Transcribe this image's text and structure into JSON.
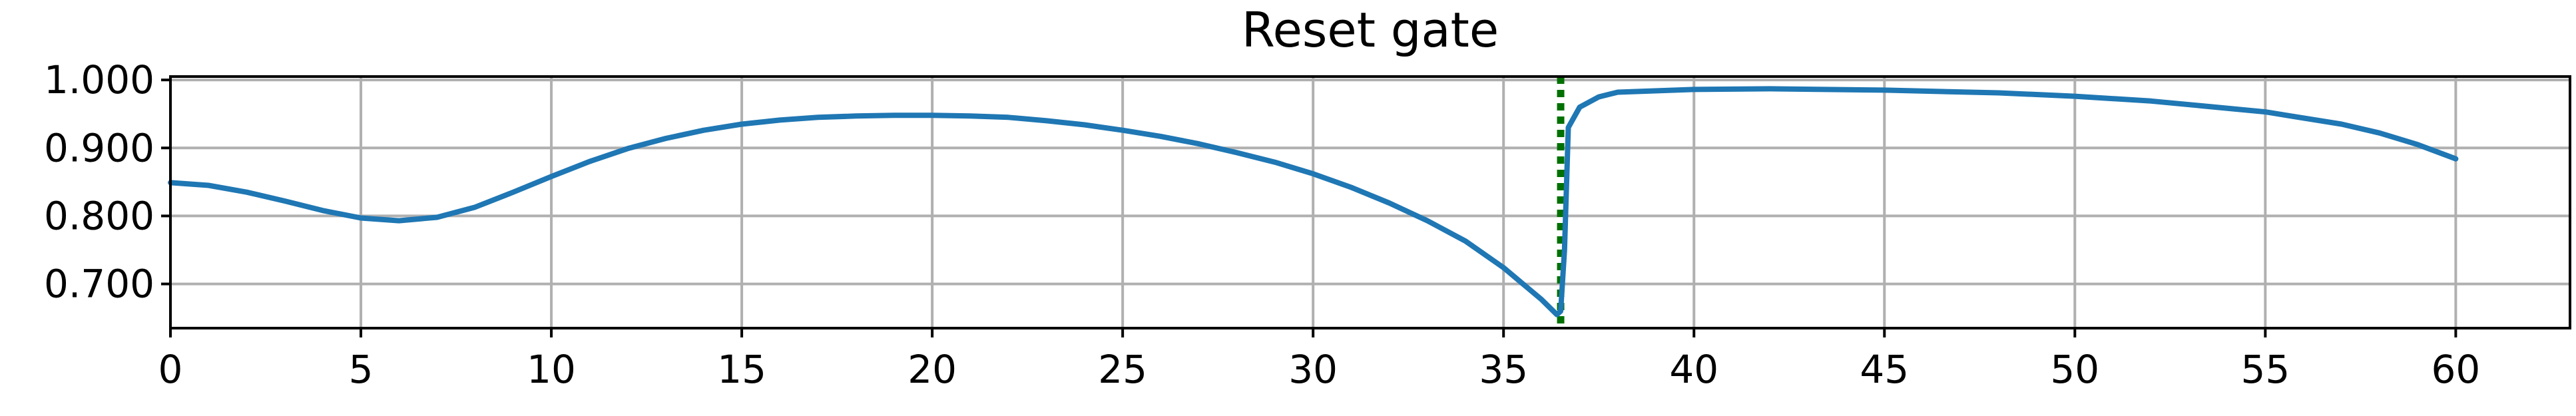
{
  "chart_data": {
    "type": "line",
    "title": "Reset gate",
    "xlabel": "",
    "ylabel": "",
    "xlim": [
      0,
      63
    ],
    "ylim": [
      0.635,
      1.005
    ],
    "grid": true,
    "x_ticks": [
      0,
      5,
      10,
      15,
      20,
      25,
      30,
      35,
      40,
      45,
      50,
      55,
      60
    ],
    "x_tick_labels": [
      "0",
      "5",
      "10",
      "15",
      "20",
      "25",
      "30",
      "35",
      "40",
      "45",
      "50",
      "55",
      "60"
    ],
    "y_ticks": [
      0.7,
      0.8,
      0.9,
      1.0
    ],
    "y_tick_labels": [
      "0.700",
      "0.800",
      "0.900",
      "1.000"
    ],
    "series": [
      {
        "color": "#1f77b4",
        "x": [
          0,
          1,
          2,
          3,
          4,
          5,
          6,
          7,
          8,
          9,
          10,
          11,
          12,
          13,
          14,
          15,
          16,
          17,
          18,
          19,
          20,
          21,
          22,
          23,
          24,
          25,
          26,
          27,
          28,
          29,
          30,
          31,
          32,
          33,
          34,
          35,
          36,
          36.4,
          36.5,
          36.6,
          36.7,
          37,
          37.5,
          38,
          40,
          42,
          45,
          48,
          50,
          52,
          55,
          57,
          58,
          59,
          60
        ],
        "y": [
          0.849,
          0.845,
          0.835,
          0.822,
          0.808,
          0.797,
          0.793,
          0.798,
          0.813,
          0.835,
          0.858,
          0.88,
          0.899,
          0.914,
          0.926,
          0.935,
          0.941,
          0.945,
          0.947,
          0.948,
          0.948,
          0.947,
          0.945,
          0.94,
          0.934,
          0.926,
          0.917,
          0.906,
          0.893,
          0.879,
          0.862,
          0.842,
          0.819,
          0.793,
          0.763,
          0.724,
          0.677,
          0.655,
          0.66,
          0.75,
          0.93,
          0.96,
          0.975,
          0.982,
          0.986,
          0.987,
          0.985,
          0.981,
          0.976,
          0.969,
          0.953,
          0.935,
          0.922,
          0.905,
          0.884
        ]
      }
    ],
    "vlines": [
      {
        "x": 36.5,
        "color": "#007000",
        "style": "dotted"
      }
    ]
  }
}
